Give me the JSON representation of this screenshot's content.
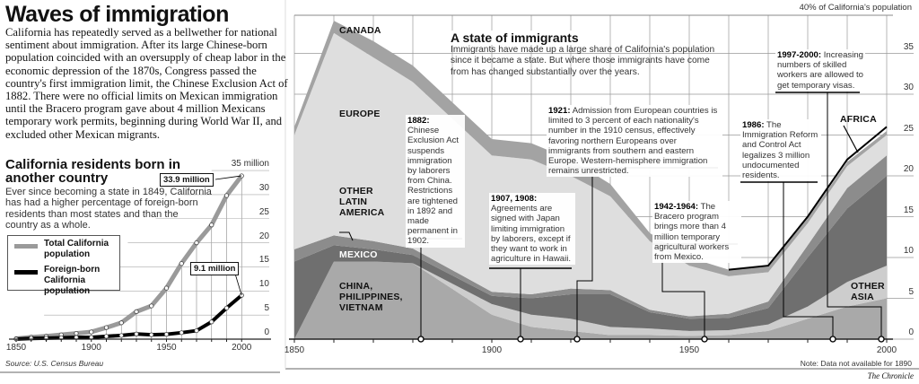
{
  "header": {
    "title": "Waves of immigration",
    "intro": "California has repeatedly served as a bellwether for national sentiment about immigration. After its large Chinese-born population coincided with an oversupply of cheap labor in the economic depression of the 1870s, Congress passed the country's first immigration limit, the Chinese Exclusion Act of 1882. There were no official limits on Mexican immigration until the Bracero program gave about 4 million Mexicans temporary work permits, beginning during World War II, and excluded other Mexican migrants."
  },
  "credit": "The Chronicle",
  "colors": {
    "china": "#a9a9a9",
    "other_asia": "#cdcdcd",
    "mexico": "#6f6f6f",
    "other_latin_america": "#8c8c8c",
    "europe": "#dedede",
    "canada": "#a3a3a3",
    "africa": "#000000",
    "total_line": "#9a9a9a",
    "foreign_line": "#000000"
  },
  "chart_data": [
    {
      "type": "line",
      "title": "California residents born in another country",
      "subtitle": "Ever since becoming a state in 1849, California has had a higher percentage of foreign-born residents than most states and than the country as a whole.",
      "x": [
        1850,
        1860,
        1870,
        1880,
        1890,
        1900,
        1910,
        1920,
        1930,
        1940,
        1950,
        1960,
        1970,
        1980,
        1990,
        2000
      ],
      "series": [
        {
          "name": "Total California population",
          "values": [
            0.1,
            0.4,
            0.6,
            0.9,
            1.2,
            1.5,
            2.4,
            3.4,
            5.7,
            6.9,
            10.6,
            15.7,
            20.0,
            23.7,
            29.8,
            33.9
          ]
        },
        {
          "name": "Foreign-born California population",
          "values": [
            0.02,
            0.15,
            0.21,
            0.29,
            0.37,
            0.37,
            0.59,
            0.76,
            1.07,
            0.91,
            1.0,
            1.34,
            1.76,
            3.58,
            6.46,
            9.1
          ]
        }
      ],
      "ylim": [
        0,
        35
      ],
      "yticks": [
        "35 million",
        "30",
        "25",
        "20",
        "15",
        "10",
        "5",
        "0"
      ],
      "xticks": [
        "1850",
        "1900",
        "1950",
        "2000"
      ],
      "annotations": [
        "33.9 million",
        "9.1 million"
      ],
      "source": "Source: U.S. Census Bureau",
      "grid": true,
      "legend": "left"
    },
    {
      "type": "area",
      "stacked": true,
      "title": "A state of immigrants",
      "subtitle": "Immigrants have made up a large share of California's population since it became a state. But where those immigrants have come from has changed substantially over the years.",
      "ylabel": "40% of California's population",
      "x": [
        1850,
        1860,
        1870,
        1880,
        1900,
        1910,
        1920,
        1930,
        1940,
        1950,
        1960,
        1970,
        1980,
        1990,
        2000
      ],
      "series": [
        {
          "name": "CHINA, PHILIPPINES, VIETNAM",
          "key": "china",
          "values": [
            0,
            9.5,
            9.5,
            9.3,
            3,
            1.5,
            1,
            0.5,
            0.5,
            0.4,
            0.5,
            1,
            2.5,
            4,
            5
          ]
        },
        {
          "name": "OTHER ASIA",
          "key": "other_asia",
          "values": [
            0,
            0,
            0,
            0,
            1.3,
            1.5,
            1.5,
            1,
            0.8,
            0.6,
            0.6,
            0.8,
            1.5,
            3,
            4
          ]
        },
        {
          "name": "MEXICO",
          "key": "mexico",
          "values": [
            9.5,
            2,
            1.5,
            1,
            1,
            2,
            3,
            4,
            2,
            1.5,
            1.5,
            2,
            6,
            9,
            11
          ]
        },
        {
          "name": "OTHER LATIN AMERICA",
          "key": "other_latin_america",
          "values": [
            1.5,
            1.2,
            1,
            0.8,
            0.5,
            0.5,
            0.7,
            0.5,
            0.3,
            0.3,
            0.5,
            0.8,
            1.5,
            2.5,
            2.5
          ]
        },
        {
          "name": "EUROPE",
          "key": "europe",
          "values": [
            14,
            24.8,
            22.5,
            20.4,
            16.7,
            16.5,
            13.8,
            11.5,
            8.4,
            6.2,
            4.6,
            3.6,
            2.7,
            2.7,
            2.5
          ]
        },
        {
          "name": "CANADA",
          "key": "canada",
          "values": [
            1,
            1.5,
            2,
            2,
            2,
            2,
            2,
            1.5,
            1,
            1,
            0.8,
            0.7,
            0.6,
            0.5,
            0.5
          ]
        },
        {
          "name": "AFRICA",
          "key": "africa",
          "values": [
            0,
            0,
            0,
            0,
            0,
            0,
            0,
            0,
            0,
            0,
            0,
            0.1,
            0.2,
            0.3,
            0.5
          ]
        }
      ],
      "ylim": [
        0,
        40
      ],
      "yticks": [
        "35",
        "30",
        "25",
        "20",
        "15",
        "10",
        "5",
        "0"
      ],
      "xticks": [
        "1850",
        "1900",
        "1950",
        "2000"
      ],
      "note": "Note: Data not available for 1890",
      "grid": true,
      "events": [
        {
          "year": 1882,
          "label": "1882:",
          "text": "Chinese Exclusion Act suspends immigration by laborers from China. Restrictions are tightened in 1892 and made permanent in 1902."
        },
        {
          "year": 1908,
          "label": "1907, 1908:",
          "text": "Agreements are signed with Japan limiting immigration by laborers, except if they want to work in agriculture in Hawaii."
        },
        {
          "year": 1921,
          "label": "1921:",
          "text": "Admission from European countries is limited to 3 percent of each nationality's number in the 1910 census, effectively favoring northern Europeans over immigrants from southern and eastern Europe. Western-hemisphere immigration remains unrestricted."
        },
        {
          "year": 1954,
          "label": "1942-1964:",
          "text": "The Bracero program brings more than 4 million temporary agricultural workers from Mexico."
        },
        {
          "year": 1986,
          "label": "1986:",
          "text": "The Immigration Reform and Control Act legalizes 3 million undocumented residents."
        },
        {
          "year": 1998,
          "label": "1997-2000:",
          "text": "Increasing numbers of skilled workers are allowed to get temporary visas."
        }
      ]
    }
  ]
}
